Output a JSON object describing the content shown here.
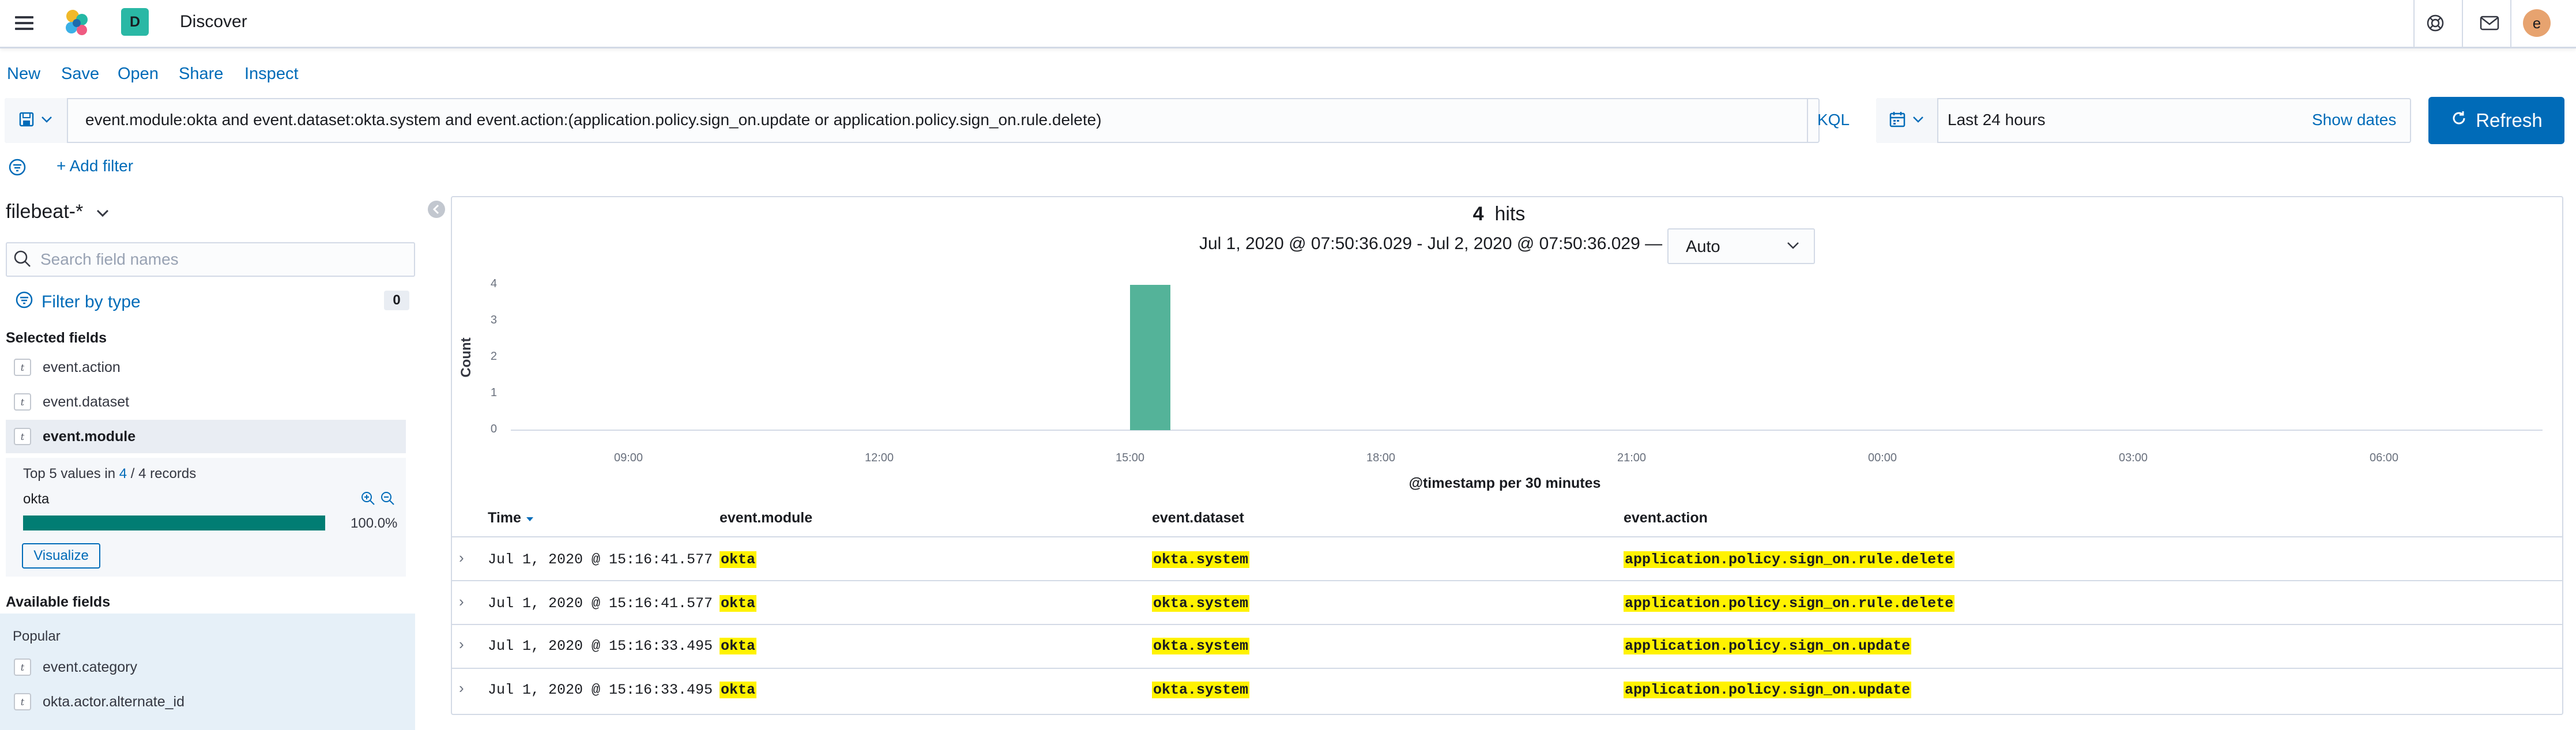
{
  "header": {
    "space_initial": "D",
    "app_title": "Discover",
    "avatar_initial": "e"
  },
  "topnav": {
    "new": "New",
    "save": "Save",
    "open": "Open",
    "share": "Share",
    "inspect": "Inspect"
  },
  "query": {
    "text": "event.module:okta and event.dataset:okta.system and event.action:(application.policy.sign_on.update or application.policy.sign_on.rule.delete)",
    "language": "KQL"
  },
  "time": {
    "range": "Last 24 hours",
    "show_dates": "Show dates",
    "refresh": "Refresh"
  },
  "filters": {
    "add_filter": "+ Add filter"
  },
  "sidebar": {
    "index_pattern": "filebeat-*",
    "search_placeholder": "Search field names",
    "filter_by_type": "Filter by type",
    "filter_count": "0",
    "selected_title": "Selected fields",
    "selected_fields": [
      "event.action",
      "event.dataset",
      "event.module"
    ],
    "detail": {
      "top_prefix": "Top 5 values in ",
      "top_count": "4",
      "top_sep": " / ",
      "top_total": "4 records",
      "value": "okta",
      "percent": "100.0%",
      "percent_fraction": 1.0,
      "visualize": "Visualize"
    },
    "available_title": "Available fields",
    "popular_title": "Popular",
    "popular_fields": [
      "event.category",
      "okta.actor.alternate_id"
    ]
  },
  "results": {
    "hits_count": "4",
    "hits_label": "hits",
    "date_range": "Jul 1, 2020 @ 07:50:36.029 - Jul 2, 2020 @ 07:50:36.029 —",
    "interval": "Auto"
  },
  "chart_data": {
    "type": "bar",
    "ylabel": "Count",
    "xlabel": "@timestamp per 30 minutes",
    "x_ticks": [
      "09:00",
      "12:00",
      "15:00",
      "18:00",
      "21:00",
      "00:00",
      "03:00",
      "06:00"
    ],
    "y_ticks": [
      "0",
      "1",
      "2",
      "3",
      "4"
    ],
    "ylim": [
      0,
      4
    ],
    "bars": [
      {
        "x": "15:00-15:30",
        "value": 4
      }
    ],
    "color": "#54b399"
  },
  "table": {
    "columns": [
      "Time",
      "event.module",
      "event.dataset",
      "event.action"
    ],
    "rows": [
      {
        "time": "Jul 1, 2020 @ 15:16:41.577",
        "module": "okta",
        "dataset": "okta.system",
        "action": "application.policy.sign_on.rule.delete"
      },
      {
        "time": "Jul 1, 2020 @ 15:16:41.577",
        "module": "okta",
        "dataset": "okta.system",
        "action": "application.policy.sign_on.rule.delete"
      },
      {
        "time": "Jul 1, 2020 @ 15:16:33.495",
        "module": "okta",
        "dataset": "okta.system",
        "action": "application.policy.sign_on.update"
      },
      {
        "time": "Jul 1, 2020 @ 15:16:33.495",
        "module": "okta",
        "dataset": "okta.system",
        "action": "application.policy.sign_on.update"
      }
    ]
  },
  "colors": {
    "accent": "#006bb8",
    "bar": "#54b399",
    "highlight": "#fff200",
    "field_bar": "#017d73"
  }
}
